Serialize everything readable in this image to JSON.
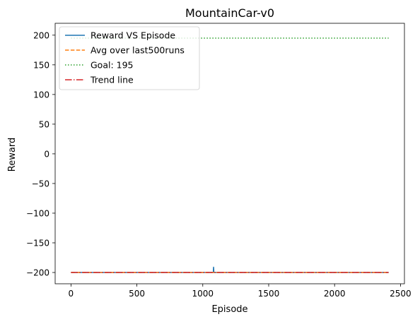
{
  "chart_data": {
    "type": "line",
    "title": "MountainCar-v0",
    "xlabel": "Episode",
    "ylabel": "Reward",
    "xlim": [
      -120,
      2530
    ],
    "ylim": [
      -219,
      220
    ],
    "xticks": [
      0,
      500,
      1000,
      1500,
      2000,
      2500
    ],
    "xtick_labels": [
      "0",
      "500",
      "1000",
      "1500",
      "2000",
      "2500"
    ],
    "yticks": [
      -200,
      -150,
      -100,
      -50,
      0,
      50,
      100,
      150,
      200
    ],
    "ytick_labels": [
      "−200",
      "−150",
      "−100",
      "−50",
      "0",
      "50",
      "100",
      "150",
      "200"
    ],
    "grid": false,
    "legend_position": "upper-left",
    "series": [
      {
        "name": "Reward VS Episode",
        "color": "#1f77b4",
        "style": "solid",
        "x": [
          0,
          1080,
          1081,
          1082,
          1083,
          1084,
          2410
        ],
        "y": [
          -200,
          -200,
          -194,
          -191,
          -194,
          -200,
          -200
        ]
      },
      {
        "name": "Avg over last500runs",
        "color": "#ff7f0e",
        "style": "dashed",
        "x": [
          0,
          2410
        ],
        "y": [
          -200,
          -200
        ]
      },
      {
        "name": "Goal: 195",
        "color": "#2ca02c",
        "style": "dotted",
        "x": [
          0,
          2410
        ],
        "y": [
          195,
          195
        ]
      },
      {
        "name": "Trend line",
        "color": "#d62728",
        "style": "dashdot",
        "x": [
          0,
          2410
        ],
        "y": [
          -200,
          -200
        ]
      }
    ]
  }
}
